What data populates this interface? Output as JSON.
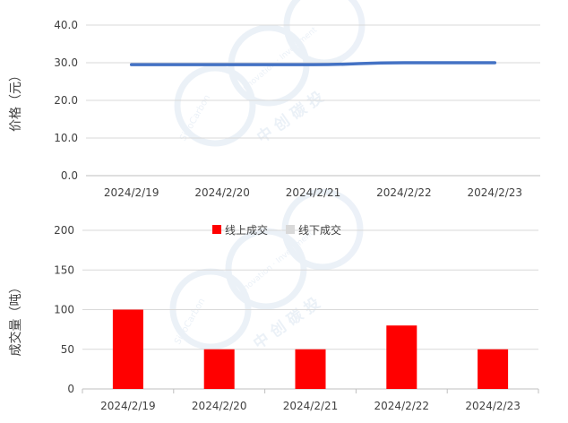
{
  "chart_data": [
    {
      "type": "line",
      "ylabel": "价格（元）",
      "categories": [
        "2024/2/19",
        "2024/2/20",
        "2024/2/21",
        "2024/2/22",
        "2024/2/23"
      ],
      "yticks": [
        "0.0",
        "10.0",
        "20.0",
        "30.0",
        "40.0"
      ],
      "ylim": [
        0,
        40
      ],
      "series": [
        {
          "values": [
            29.5,
            29.5,
            29.5,
            30.0,
            30.0
          ],
          "color": "#4472C4"
        }
      ],
      "grid": true
    },
    {
      "type": "bar",
      "ylabel": "成交量（吨）",
      "categories": [
        "2024/2/19",
        "2024/2/20",
        "2024/2/21",
        "2024/2/22",
        "2024/2/23"
      ],
      "yticks": [
        "0",
        "50",
        "100",
        "150",
        "200"
      ],
      "ylim": [
        0,
        200
      ],
      "series": [
        {
          "name": "线上成交",
          "values": [
            100,
            50,
            50,
            80,
            50
          ],
          "color": "#FF0000"
        },
        {
          "name": "线下成交",
          "values": [
            0,
            0,
            0,
            0,
            0
          ],
          "color": "#D9D9D9"
        }
      ],
      "legend_position": "top",
      "grid": true
    }
  ],
  "watermark": {
    "arc_text": "SinoCarbon",
    "arc_text2": "Innovation · Investment",
    "label": "中 创 碳 投",
    "color": "#DCE6F2"
  }
}
